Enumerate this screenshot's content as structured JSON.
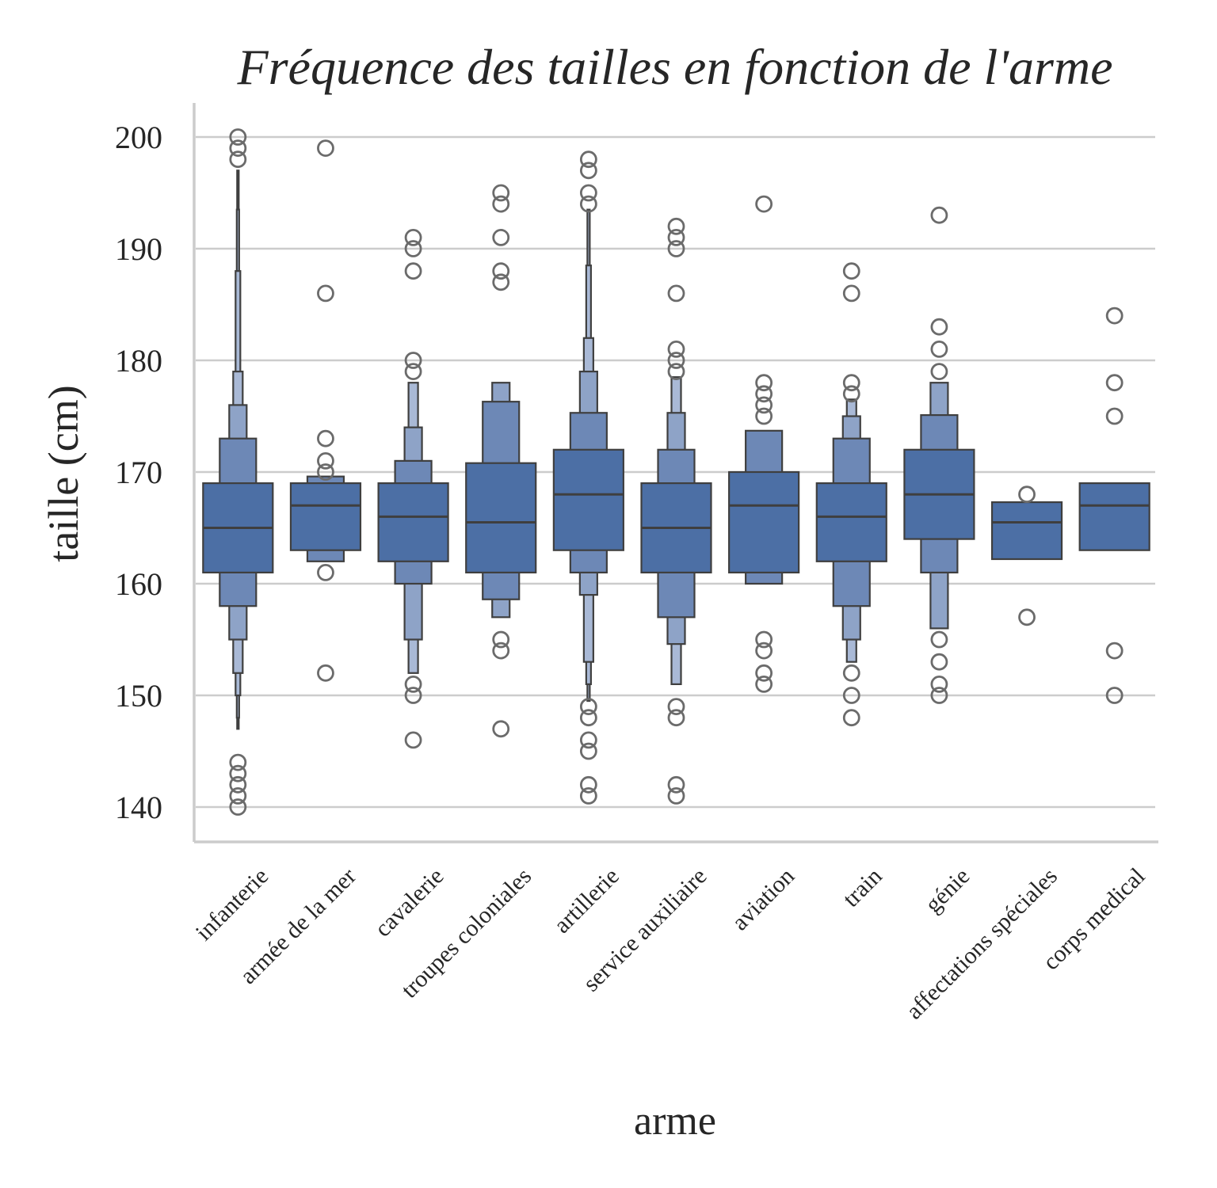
{
  "chart_data": {
    "type": "boxen",
    "title": "Fréquence des tailles en fonction de l'arme",
    "xlabel": "arme",
    "ylabel": "taille (cm)",
    "ylim": [
      137,
      203
    ],
    "yticks": [
      140,
      150,
      160,
      170,
      180,
      190,
      200
    ],
    "grid": "horizontal",
    "colors": [
      "#4c6fa5",
      "#6d88b6",
      "#8ea3c7",
      "#a9b9d6"
    ],
    "categories": [
      {
        "name": "infanterie",
        "median": 165,
        "boxes": [
          [
            161,
            169
          ],
          [
            158,
            173
          ],
          [
            155,
            176
          ],
          [
            152,
            179
          ],
          [
            150,
            188
          ],
          [
            148,
            193.5
          ],
          [
            147,
            197
          ]
        ],
        "outliers": [
          140,
          141,
          142,
          143,
          144,
          198,
          199,
          200
        ]
      },
      {
        "name": "armée de la mer",
        "median": 167,
        "boxes": [
          [
            163,
            169
          ],
          [
            162,
            169.6
          ]
        ],
        "outliers": [
          152,
          161,
          170,
          171,
          173,
          186,
          199
        ]
      },
      {
        "name": "cavalerie",
        "median": 166,
        "boxes": [
          [
            162,
            169
          ],
          [
            160,
            171
          ],
          [
            155,
            174
          ],
          [
            152,
            178
          ]
        ],
        "outliers": [
          146,
          150,
          151,
          179,
          180,
          188,
          190,
          191
        ]
      },
      {
        "name": "troupes coloniales",
        "median": 165.5,
        "boxes": [
          [
            161,
            170.8
          ],
          [
            158.6,
            176.3
          ],
          [
            157,
            178
          ]
        ],
        "outliers": [
          147,
          154,
          155,
          187,
          188,
          191,
          194,
          195
        ]
      },
      {
        "name": "artillerie",
        "median": 168,
        "boxes": [
          [
            163,
            172
          ],
          [
            161,
            175.3
          ],
          [
            159,
            179
          ],
          [
            153,
            182
          ],
          [
            151,
            188.5
          ],
          [
            149.5,
            193.5
          ]
        ],
        "outliers": [
          141,
          142,
          145,
          146,
          148,
          149,
          194,
          195,
          197,
          198
        ]
      },
      {
        "name": "service auxiliaire",
        "median": 165,
        "boxes": [
          [
            161,
            169
          ],
          [
            157,
            172
          ],
          [
            154.6,
            175.3
          ],
          [
            151,
            178.5
          ]
        ],
        "outliers": [
          141,
          142,
          148,
          149,
          179,
          180,
          181,
          186,
          190,
          191,
          192
        ]
      },
      {
        "name": "aviation",
        "median": 167,
        "boxes": [
          [
            161,
            170
          ],
          [
            160,
            173.7
          ]
        ],
        "outliers": [
          151,
          152,
          154,
          155,
          175,
          176,
          177,
          178,
          194
        ]
      },
      {
        "name": "train",
        "median": 166,
        "boxes": [
          [
            162,
            169
          ],
          [
            158,
            173
          ],
          [
            155,
            175
          ],
          [
            153,
            176.5
          ]
        ],
        "outliers": [
          148,
          150,
          152,
          177,
          178,
          186,
          188
        ]
      },
      {
        "name": "génie",
        "median": 168,
        "boxes": [
          [
            164,
            172
          ],
          [
            161,
            175.1
          ],
          [
            156,
            178
          ]
        ],
        "outliers": [
          150,
          151,
          153,
          155,
          179,
          181,
          183,
          193
        ]
      },
      {
        "name": "affectations spéciales",
        "median": 165.5,
        "boxes": [
          [
            162.2,
            167.3
          ]
        ],
        "outliers": [
          157,
          168
        ]
      },
      {
        "name": "corps medical",
        "median": 167,
        "boxes": [
          [
            163,
            169
          ]
        ],
        "outliers": [
          150,
          154,
          175,
          178,
          184
        ]
      }
    ]
  }
}
